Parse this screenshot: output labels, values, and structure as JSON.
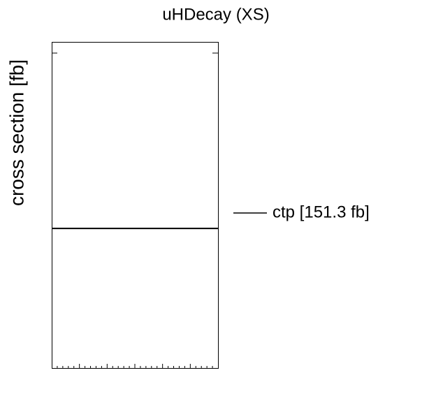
{
  "chart_data": {
    "type": "hline",
    "title": "uHDecay (XS)",
    "y_label": "cross section [fb]",
    "series": [
      {
        "name": "ctp [151.3 fb]",
        "color": "#000000",
        "values": [
          151.3
        ]
      }
    ],
    "ylim": [
      0,
      353.5
    ]
  }
}
